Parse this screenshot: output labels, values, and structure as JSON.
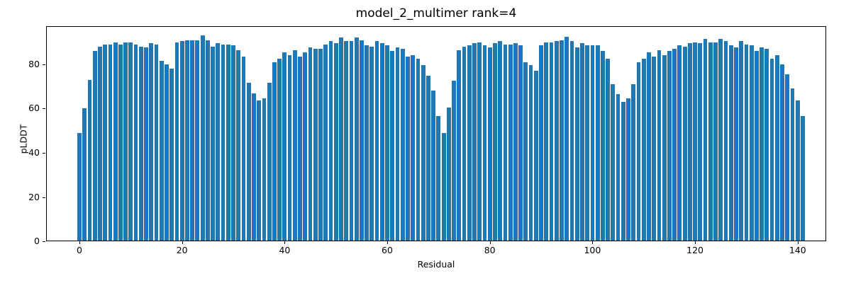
{
  "chart_data": {
    "type": "bar",
    "title": "model_2_multimer rank=4",
    "xlabel": "Residual",
    "ylabel": "pLDDT",
    "bar_color": "#1f77b4",
    "x_start": 0,
    "xticks": [
      0,
      20,
      40,
      60,
      80,
      100,
      120,
      140
    ],
    "yticks": [
      0,
      20,
      40,
      60,
      80
    ],
    "xlim": [
      -7.5,
      148.5
    ],
    "ylim": [
      0,
      97.2
    ],
    "legend": "none",
    "grid": false,
    "values": [
      49,
      60,
      73,
      86,
      88,
      89,
      89,
      90,
      89,
      90,
      90,
      89,
      88,
      87.5,
      89.5,
      89,
      81.5,
      80,
      78,
      90,
      90.5,
      91,
      91,
      91,
      93,
      91,
      88,
      89.5,
      89,
      89,
      88.5,
      86.5,
      83.5,
      71.5,
      67,
      63.5,
      64.5,
      71.5,
      81,
      82.5,
      85.5,
      84,
      86.5,
      83.5,
      85.5,
      87.5,
      87,
      87,
      89,
      90.5,
      89.5,
      92,
      90.5,
      90.5,
      92,
      91,
      88.5,
      88,
      90.5,
      89.5,
      88.5,
      86,
      87.5,
      87,
      83.5,
      84,
      82.5,
      79.5,
      75,
      68,
      56.5,
      49,
      60.5,
      72.5,
      86.5,
      88,
      88.5,
      89.5,
      90,
      88.5,
      87.5,
      89.5,
      90.5,
      89,
      89,
      89.5,
      88.5,
      81,
      79.5,
      77,
      88.5,
      90,
      90,
      90.5,
      91,
      92.5,
      90.5,
      87.5,
      89.5,
      88.5,
      88.5,
      88.5,
      86,
      82.5,
      71,
      66.5,
      63,
      64.5,
      71,
      81,
      82.5,
      85.5,
      83.5,
      86.5,
      84,
      86,
      87,
      88.5,
      88,
      89.5,
      90,
      89.5,
      91.5,
      90,
      90,
      91.5,
      90.5,
      88.5,
      87.5,
      90.5,
      89,
      88.5,
      86,
      87.5,
      87,
      82.5,
      84,
      80,
      75.5,
      69,
      63.5,
      56.5
    ]
  }
}
